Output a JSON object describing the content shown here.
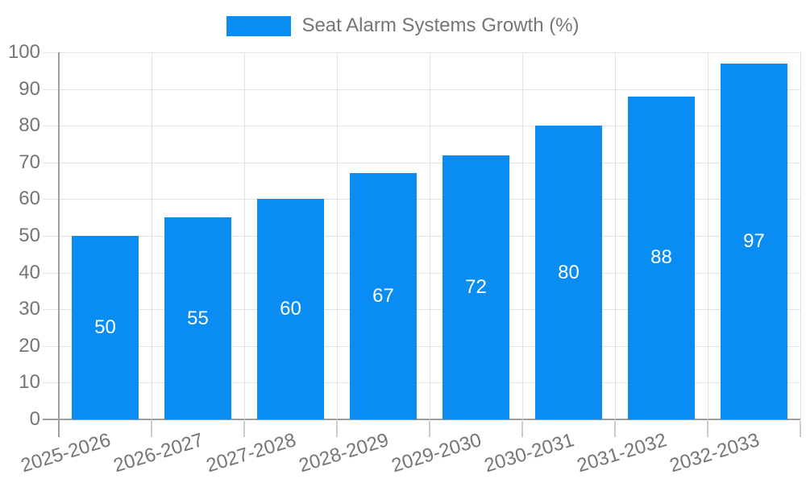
{
  "legend": {
    "position": "top"
  },
  "chart_data": {
    "type": "bar",
    "title": "",
    "categories": [
      "2025-2026",
      "2026-2027",
      "2027-2028",
      "2028-2029",
      "2029-2030",
      "2030-2031",
      "2031-2032",
      "2032-2033"
    ],
    "series": [
      {
        "name": "Seat Alarm Systems Growth (%)",
        "values": [
          50,
          55,
          60,
          67,
          72,
          80,
          88,
          97
        ]
      }
    ],
    "xlabel": "",
    "ylabel": "",
    "ylim": [
      0,
      100
    ],
    "yticks": [
      0,
      10,
      20,
      30,
      40,
      50,
      60,
      70,
      80,
      90,
      100
    ],
    "grid": true,
    "legend_position": "top",
    "value_labels_position": "inside-center",
    "x_tick_rotation_deg": -17,
    "colors": {
      "bar": "#0a8df2",
      "axis_line": "#9e9e9e",
      "gridline": "#e2e2e2",
      "tick_stub": "#cccccc",
      "axis_text": "#757575",
      "value_label": "#ffffff",
      "background": "#ffffff"
    }
  }
}
